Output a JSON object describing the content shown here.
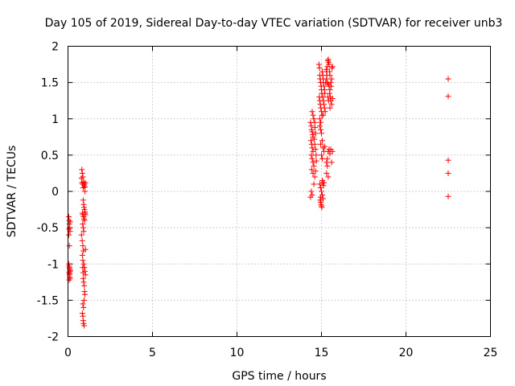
{
  "chart_data": {
    "type": "scatter",
    "title": "Day 105 of 2019, Sidereal Day-to-day VTEC variation (SDTVAR) for receiver unb3",
    "xlabel": "GPS time / hours",
    "ylabel": "SDTVAR / TECUs",
    "xlim": [
      0,
      25
    ],
    "ylim": [
      -2,
      2
    ],
    "xticks": [
      0,
      5,
      10,
      15,
      20,
      25
    ],
    "xtick_labels": [
      "0",
      "5",
      "10",
      "15",
      "20",
      "25"
    ],
    "yticks": [
      -2,
      -1.5,
      -1,
      -0.5,
      0,
      0.5,
      1,
      1.5,
      2
    ],
    "ytick_labels": [
      "-2",
      "-1.5",
      "-1",
      "-0.5",
      "0",
      "0.5",
      "1",
      "1.5",
      "2"
    ],
    "grid": true,
    "marker": "+",
    "color": "#ff0000",
    "series": [
      {
        "name": "SDTVAR",
        "points": [
          [
            0.05,
            -0.35
          ],
          [
            0.07,
            -0.4
          ],
          [
            0.08,
            -0.45
          ],
          [
            0.1,
            -0.5
          ],
          [
            0.12,
            -0.55
          ],
          [
            0.05,
            -0.6
          ],
          [
            0.08,
            -0.75
          ],
          [
            0.1,
            -0.5
          ],
          [
            0.13,
            -0.42
          ],
          [
            0.06,
            -0.52
          ],
          [
            0.05,
            -1.0
          ],
          [
            0.07,
            -1.03
          ],
          [
            0.09,
            -1.07
          ],
          [
            0.11,
            -1.1
          ],
          [
            0.06,
            -1.12
          ],
          [
            0.08,
            -1.15
          ],
          [
            0.1,
            -1.18
          ],
          [
            0.12,
            -1.2
          ],
          [
            0.07,
            -1.22
          ],
          [
            0.09,
            -1.05
          ],
          [
            0.11,
            -1.13
          ],
          [
            0.13,
            -1.09
          ],
          [
            0.82,
            0.3
          ],
          [
            0.85,
            0.25
          ],
          [
            0.88,
            0.2
          ],
          [
            0.8,
            0.18
          ],
          [
            0.83,
            0.12
          ],
          [
            0.87,
            0.1
          ],
          [
            0.9,
            0.05
          ],
          [
            0.92,
            0.13
          ],
          [
            0.95,
            0.08
          ],
          [
            0.98,
            0.1
          ],
          [
            1.0,
            0.06
          ],
          [
            1.02,
            0.12
          ],
          [
            1.0,
            0.0
          ],
          [
            0.9,
            -0.12
          ],
          [
            0.93,
            -0.18
          ],
          [
            0.95,
            -0.22
          ],
          [
            0.98,
            -0.25
          ],
          [
            1.0,
            -0.28
          ],
          [
            0.85,
            -0.3
          ],
          [
            0.88,
            -0.32
          ],
          [
            0.92,
            -0.35
          ],
          [
            0.95,
            -0.38
          ],
          [
            0.98,
            -0.4
          ],
          [
            1.0,
            -0.3
          ],
          [
            1.02,
            -0.32
          ],
          [
            0.87,
            -0.45
          ],
          [
            0.9,
            -0.5
          ],
          [
            0.93,
            -0.55
          ],
          [
            0.8,
            -0.6
          ],
          [
            0.84,
            -0.68
          ],
          [
            0.88,
            -0.75
          ],
          [
            0.91,
            -0.82
          ],
          [
            0.85,
            -0.88
          ],
          [
            0.88,
            -0.95
          ],
          [
            0.93,
            -1.0
          ],
          [
            0.97,
            -1.05
          ],
          [
            1.0,
            -1.1
          ],
          [
            1.03,
            -1.15
          ],
          [
            0.9,
            -1.2
          ],
          [
            0.93,
            -1.25
          ],
          [
            0.96,
            -1.3
          ],
          [
            0.98,
            -1.38
          ],
          [
            1.0,
            -1.42
          ],
          [
            0.95,
            -1.5
          ],
          [
            0.88,
            -1.55
          ],
          [
            0.92,
            -1.6
          ],
          [
            0.85,
            -1.68
          ],
          [
            0.88,
            -1.72
          ],
          [
            0.9,
            -1.78
          ],
          [
            0.92,
            -1.82
          ],
          [
            0.95,
            -1.85
          ],
          [
            0.87,
            -1.05
          ],
          [
            0.9,
            -1.12
          ],
          [
            1.03,
            -0.8
          ],
          [
            14.35,
            0.95
          ],
          [
            14.4,
            0.9
          ],
          [
            14.42,
            0.85
          ],
          [
            14.45,
            0.82
          ],
          [
            14.48,
            0.78
          ],
          [
            14.5,
            0.75
          ],
          [
            14.38,
            0.7
          ],
          [
            14.42,
            0.65
          ],
          [
            14.45,
            0.6
          ],
          [
            14.5,
            0.55
          ],
          [
            14.4,
            0.5
          ],
          [
            14.45,
            0.45
          ],
          [
            14.5,
            0.4
          ],
          [
            14.55,
            0.35
          ],
          [
            14.42,
            0.3
          ],
          [
            14.5,
            0.25
          ],
          [
            14.55,
            1.0
          ],
          [
            14.6,
            0.95
          ],
          [
            14.62,
            0.88
          ],
          [
            14.65,
            0.8
          ],
          [
            14.58,
            0.72
          ],
          [
            14.6,
            0.65
          ],
          [
            14.65,
            0.58
          ],
          [
            14.68,
            0.5
          ],
          [
            14.7,
            0.42
          ],
          [
            14.45,
            1.1
          ],
          [
            14.5,
            1.05
          ],
          [
            14.4,
            0.0
          ],
          [
            14.45,
            -0.05
          ],
          [
            14.35,
            -0.08
          ],
          [
            14.55,
            0.1
          ],
          [
            14.6,
            0.2
          ],
          [
            14.65,
            0.28
          ],
          [
            14.85,
            1.75
          ],
          [
            14.88,
            1.7
          ],
          [
            14.9,
            1.6
          ],
          [
            14.92,
            1.55
          ],
          [
            14.95,
            1.5
          ],
          [
            14.98,
            1.45
          ],
          [
            15.0,
            1.4
          ],
          [
            15.02,
            1.35
          ],
          [
            14.87,
            1.3
          ],
          [
            14.9,
            1.25
          ],
          [
            14.93,
            1.2
          ],
          [
            14.96,
            1.15
          ],
          [
            15.0,
            1.1
          ],
          [
            15.03,
            1.05
          ],
          [
            14.9,
            1.0
          ],
          [
            14.95,
            0.95
          ],
          [
            15.05,
            1.65
          ],
          [
            15.08,
            1.6
          ],
          [
            15.1,
            1.55
          ],
          [
            15.12,
            1.5
          ],
          [
            15.15,
            1.45
          ],
          [
            15.18,
            1.4
          ],
          [
            15.2,
            1.35
          ],
          [
            15.08,
            1.3
          ],
          [
            15.12,
            1.25
          ],
          [
            15.15,
            1.2
          ],
          [
            15.18,
            1.15
          ],
          [
            15.22,
            1.1
          ],
          [
            15.1,
            1.05
          ],
          [
            15.25,
            1.5
          ],
          [
            15.28,
            1.68
          ],
          [
            15.3,
            1.65
          ],
          [
            15.32,
            1.6
          ],
          [
            15.35,
            1.72
          ],
          [
            15.38,
            1.8
          ],
          [
            15.4,
            1.82
          ],
          [
            15.42,
            1.78
          ],
          [
            15.45,
            1.75
          ],
          [
            15.3,
            1.55
          ],
          [
            15.35,
            1.5
          ],
          [
            15.4,
            1.48
          ],
          [
            15.45,
            1.45
          ],
          [
            15.5,
            1.4
          ],
          [
            15.55,
            1.5
          ],
          [
            15.6,
            1.55
          ],
          [
            15.62,
            1.7
          ],
          [
            15.65,
            1.72
          ],
          [
            15.48,
            1.35
          ],
          [
            15.52,
            1.3
          ],
          [
            15.55,
            1.25
          ],
          [
            15.6,
            1.2
          ],
          [
            15.5,
            1.15
          ],
          [
            15.65,
            1.28
          ],
          [
            15.48,
            1.65
          ],
          [
            15.5,
            1.6
          ],
          [
            15.58,
            1.45
          ],
          [
            15.42,
            1.25
          ],
          [
            15.38,
            1.3
          ],
          [
            14.9,
            0.9
          ],
          [
            14.95,
            0.85
          ],
          [
            15.0,
            0.8
          ],
          [
            15.05,
            0.7
          ],
          [
            15.1,
            0.6
          ],
          [
            15.0,
            0.5
          ],
          [
            15.05,
            0.45
          ],
          [
            15.15,
            0.55
          ],
          [
            15.2,
            0.62
          ],
          [
            14.95,
            0.65
          ],
          [
            14.9,
            0.1
          ],
          [
            14.95,
            0.05
          ],
          [
            15.0,
            0.0
          ],
          [
            15.05,
            -0.05
          ],
          [
            15.1,
            -0.1
          ],
          [
            14.92,
            -0.12
          ],
          [
            14.95,
            -0.15
          ],
          [
            14.98,
            -0.18
          ],
          [
            15.0,
            -0.2
          ],
          [
            15.02,
            -0.22
          ],
          [
            14.95,
            -0.08
          ],
          [
            15.08,
            0.12
          ],
          [
            15.12,
            0.08
          ],
          [
            15.15,
            0.12
          ],
          [
            15.05,
            0.15
          ],
          [
            15.3,
            0.4
          ],
          [
            15.35,
            0.45
          ],
          [
            15.4,
            0.55
          ],
          [
            15.45,
            0.58
          ],
          [
            15.5,
            0.52
          ],
          [
            15.55,
            0.58
          ],
          [
            15.6,
            0.4
          ],
          [
            15.65,
            0.55
          ],
          [
            15.35,
            0.35
          ],
          [
            15.3,
            0.25
          ],
          [
            15.4,
            0.2
          ],
          [
            22.5,
            1.55
          ],
          [
            22.5,
            1.31
          ],
          [
            22.5,
            0.43
          ],
          [
            22.5,
            0.25
          ],
          [
            22.5,
            -0.07
          ]
        ]
      }
    ]
  }
}
